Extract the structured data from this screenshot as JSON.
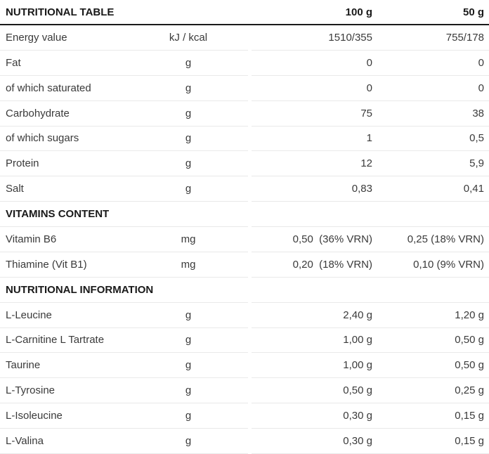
{
  "header": {
    "title": "NUTRITIONAL TABLE",
    "col_100g": "100 g",
    "col_50g": "50 g"
  },
  "rows": [
    {
      "type": "data",
      "label": "Energy value",
      "unit": "kJ / kcal",
      "v100": "1510/355",
      "v50": "755/178"
    },
    {
      "type": "data",
      "label": "Fat",
      "unit": "g",
      "v100": "0",
      "v50": "0"
    },
    {
      "type": "data",
      "label": "of which saturated",
      "unit": "g",
      "v100": "0",
      "v50": "0"
    },
    {
      "type": "data",
      "label": "Carbohydrate",
      "unit": "g",
      "v100": "75",
      "v50": "38"
    },
    {
      "type": "data",
      "label": "of which sugars",
      "unit": "g",
      "v100": "1",
      "v50": "0,5"
    },
    {
      "type": "data",
      "label": "Protein",
      "unit": "g",
      "v100": "12",
      "v50": "5,9"
    },
    {
      "type": "data",
      "label": "Salt",
      "unit": "g",
      "v100": "0,83",
      "v50": "0,41"
    },
    {
      "type": "section",
      "label": "VITAMINS CONTENT",
      "unit": "",
      "v100": "",
      "v50": ""
    },
    {
      "type": "data",
      "label": "Vitamin B6",
      "unit": "mg",
      "v100": "0,50  (36% VRN)",
      "v50": "0,25 (18% VRN)"
    },
    {
      "type": "data",
      "label": "Thiamine (Vit B1)",
      "unit": "mg",
      "v100": "0,20  (18% VRN)",
      "v50": "0,10 (9% VRN)"
    },
    {
      "type": "section",
      "label": "NUTRITIONAL INFORMATION",
      "unit": "",
      "v100": "",
      "v50": ""
    },
    {
      "type": "data",
      "label": "L-Leucine",
      "unit": "g",
      "v100": "2,40 g",
      "v50": "1,20 g"
    },
    {
      "type": "data",
      "label": "L-Carnitine L Tartrate",
      "unit": "g",
      "v100": "1,00 g",
      "v50": "0,50 g"
    },
    {
      "type": "data",
      "label": "Taurine",
      "unit": "g",
      "v100": "1,00 g",
      "v50": "0,50 g"
    },
    {
      "type": "data",
      "label": "L-Tyrosine",
      "unit": "g",
      "v100": "0,50 g",
      "v50": "0,25 g"
    },
    {
      "type": "data",
      "label": "L-Isoleucine",
      "unit": "g",
      "v100": "0,30 g",
      "v50": "0,15 g"
    },
    {
      "type": "data",
      "label": "L-Valina",
      "unit": "g",
      "v100": "0,30 g",
      "v50": "0,15 g"
    }
  ],
  "colors": {
    "heading_text": "#191919",
    "body_text": "#3a3a3a",
    "header_rule": "#1a1a1a",
    "row_rule": "#e9e9e9"
  }
}
